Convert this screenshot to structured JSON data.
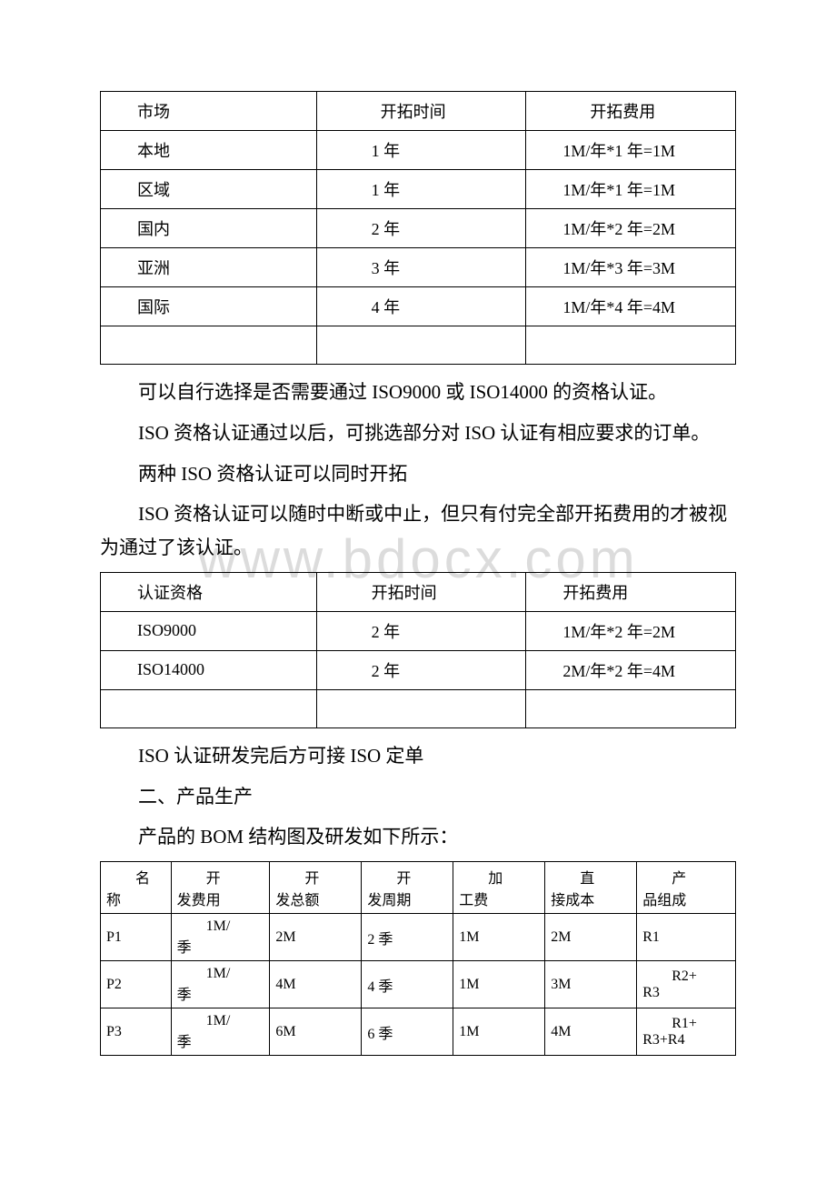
{
  "watermark": "www.bdocx.com",
  "table_market": {
    "headers": [
      "市场",
      "开拓时间",
      "开拓费用"
    ],
    "rows": [
      [
        "本地",
        "1 年",
        "1M/年*1 年=1M"
      ],
      [
        "区域",
        "1 年",
        "1M/年*1 年=1M"
      ],
      [
        "国内",
        "2 年",
        "1M/年*2 年=2M"
      ],
      [
        "亚洲",
        "3 年",
        "1M/年*3 年=3M"
      ],
      [
        "国际",
        "4 年",
        "1M/年*4 年=4M"
      ]
    ]
  },
  "p1": "可以自行选择是否需要通过 ISO9000 或 ISO14000 的资格认证。",
  "p2": "ISO 资格认证通过以后，可挑选部分对 ISO 认证有相应要求的订单。",
  "p3": "两种 ISO 资格认证可以同时开拓",
  "p4": "ISO 资格认证可以随时中断或中止，但只有付完全部开拓费用的才被视为通过了该认证。",
  "table_iso": {
    "headers": [
      "认证资格",
      "开拓时间",
      "开拓费用"
    ],
    "rows": [
      [
        "ISO9000",
        "2 年",
        "1M/年*2 年=2M"
      ],
      [
        "ISO14000",
        "2 年",
        "2M/年*2 年=4M"
      ]
    ]
  },
  "p5": "ISO 认证研发完后方可接 ISO 定单",
  "p6": "二、产品生产",
  "p7": "产品的 BOM 结构图及研发如下所示：",
  "table_bom": {
    "headers": [
      {
        "l1": "名",
        "l2": "称"
      },
      {
        "l1": "开",
        "l2": "发费用"
      },
      {
        "l1": "开",
        "l2": "发总额"
      },
      {
        "l1": "开",
        "l2": "发周期"
      },
      {
        "l1": "加",
        "l2": "工费"
      },
      {
        "l1": "直",
        "l2": "接成本"
      },
      {
        "l1": "产",
        "l2": "品组成"
      }
    ],
    "rows": [
      [
        "P1",
        {
          "l1": "1M/",
          "l2": "季"
        },
        "2M",
        "2 季",
        "1M",
        "2M",
        "R1"
      ],
      [
        "P2",
        {
          "l1": "1M/",
          "l2": "季"
        },
        "4M",
        "4 季",
        "1M",
        "3M",
        {
          "l1": "R2+",
          "l2": "R3"
        }
      ],
      [
        "P3",
        {
          "l1": "1M/",
          "l2": "季"
        },
        "6M",
        "6 季",
        "1M",
        "4M",
        {
          "l1": "R1+",
          "l2": "R3+R4"
        }
      ]
    ]
  }
}
